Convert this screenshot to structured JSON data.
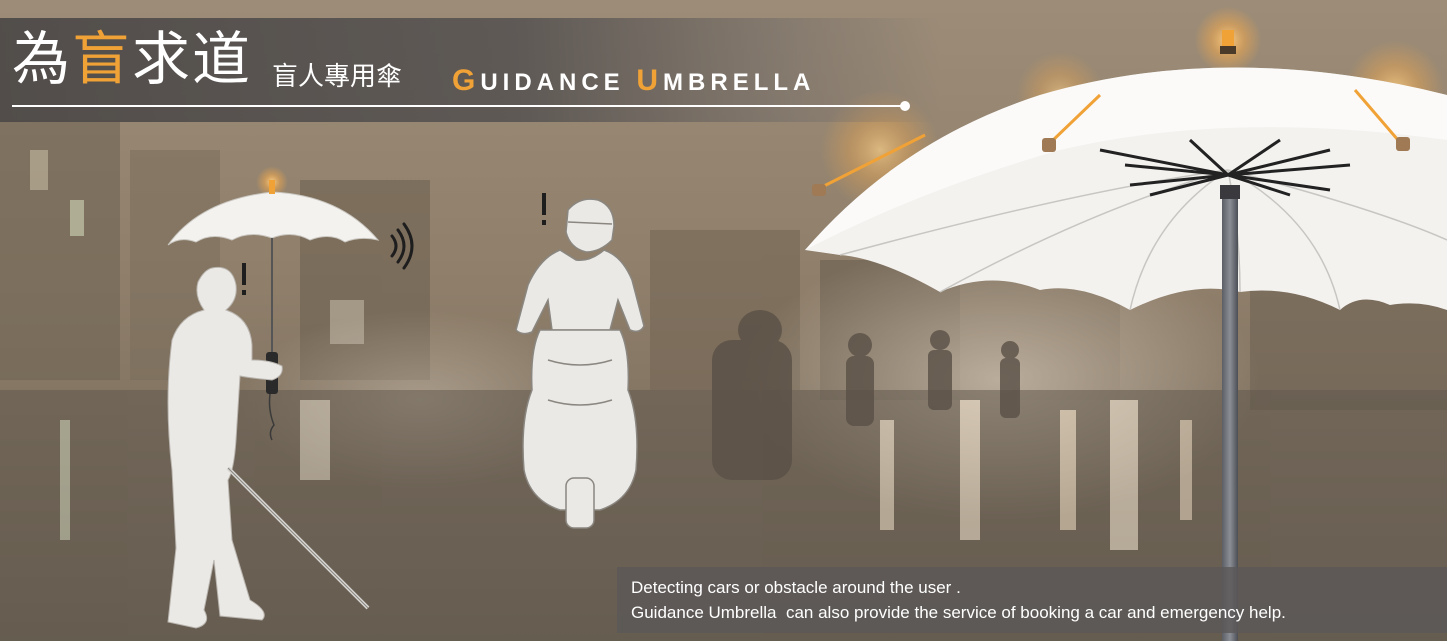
{
  "title": {
    "zh_part1": "為",
    "zh_accent": "盲",
    "zh_part2": "求道",
    "subtitle_zh": "盲人專用傘",
    "en_cap1": "G",
    "en_rest1": "UIDANCE ",
    "en_cap2": "U",
    "en_rest2": "MBRELLA"
  },
  "alerts": {
    "pedestrian_mark": "!",
    "rider_mark": "!"
  },
  "caption": {
    "line1": "Detecting cars or obstacle around the user .",
    "line2": "Guidance Umbrella  can also provide the service of booking a car and emergency help."
  },
  "colors": {
    "accent": "#f0a236",
    "title_bar": "#54504e",
    "background": "#8a7a66",
    "umbrella": "#f4f2ef",
    "figure": "#ebe9e6"
  },
  "icons": {
    "signal": "sound-wave-icon",
    "alert": "exclamation-icon"
  }
}
